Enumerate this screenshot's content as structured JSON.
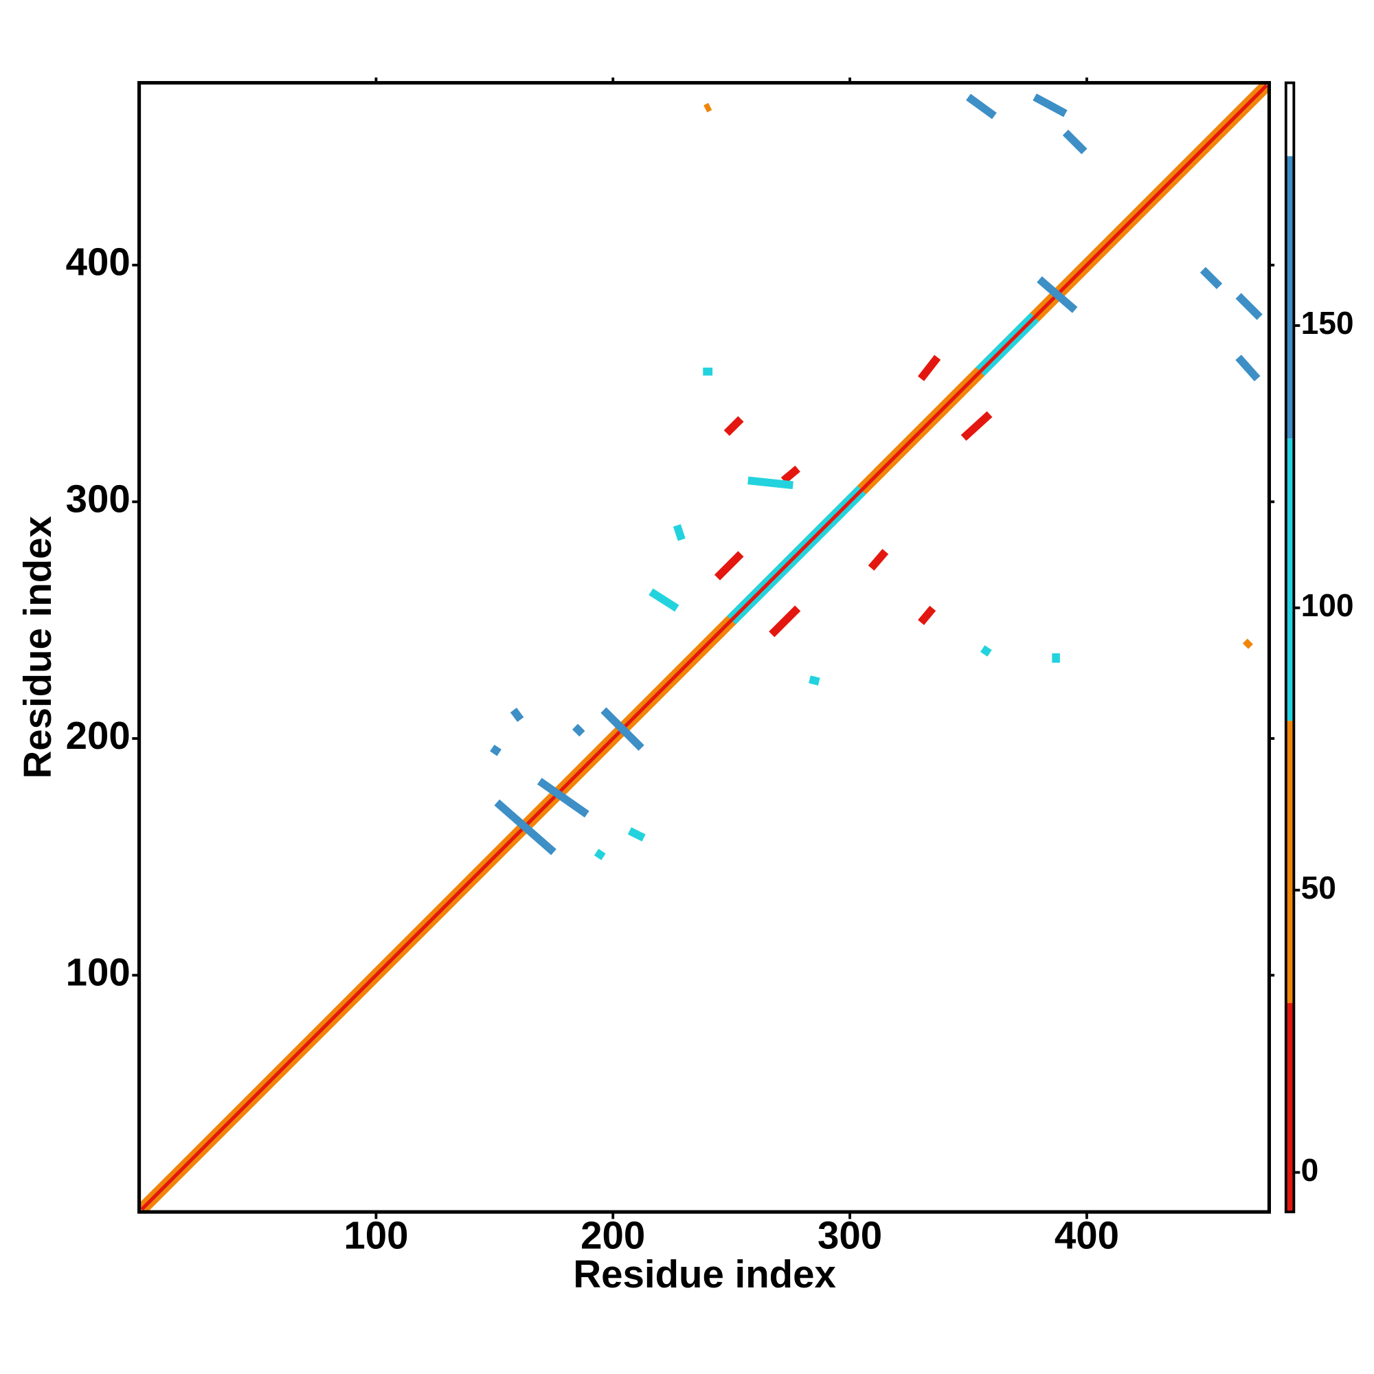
{
  "chart_data": {
    "type": "contact_map",
    "xlabel": "Residue index",
    "ylabel": "Residue index",
    "xlim": [
      0,
      477
    ],
    "ylim": [
      0,
      477
    ],
    "xticks": [
      100,
      200,
      300,
      400
    ],
    "yticks": [
      100,
      200,
      300,
      400
    ],
    "colorbar": {
      "lim": [
        -7,
        193
      ],
      "ticks": [
        0,
        50,
        100,
        150
      ],
      "bands": [
        {
          "to": 30,
          "color": "#e3170f"
        },
        {
          "to": 80,
          "color": "#f0850a"
        },
        {
          "to": 130,
          "color": "#22d3de"
        },
        {
          "to": 180,
          "color": "#3d8fc6"
        }
      ]
    },
    "segments": [
      {
        "x": [
          1,
          476
        ],
        "y": [
          1,
          476
        ],
        "value": 60
      },
      {
        "x": [
          250,
          305
        ],
        "y": [
          250,
          305
        ],
        "value": 110
      },
      {
        "x": [
          355,
          378
        ],
        "y": [
          355,
          378
        ],
        "value": 110
      },
      {
        "x": [
          1,
          476
        ],
        "y": [
          1,
          476
        ],
        "value": 10
      },
      {
        "x": [
          350,
          361
        ],
        "y": [
          471,
          463
        ],
        "value": 150
      },
      {
        "x": [
          378,
          391
        ],
        "y": [
          471,
          464
        ],
        "value": 150
      },
      {
        "x": [
          391,
          399
        ],
        "y": [
          456,
          448
        ],
        "value": 150
      },
      {
        "x": [
          449,
          456
        ],
        "y": [
          398,
          391
        ],
        "value": 150
      },
      {
        "x": [
          464,
          473
        ],
        "y": [
          387,
          378
        ],
        "value": 150
      },
      {
        "x": [
          464,
          472
        ],
        "y": [
          361,
          352
        ],
        "value": 150
      },
      {
        "x": [
          380,
          395
        ],
        "y": [
          394,
          381
        ],
        "value": 155
      },
      {
        "x": [
          151,
          175
        ],
        "y": [
          173,
          152
        ],
        "value": 150
      },
      {
        "x": [
          169,
          189
        ],
        "y": [
          182,
          168
        ],
        "value": 150
      },
      {
        "x": [
          196,
          212
        ],
        "y": [
          212,
          196
        ],
        "value": 150
      },
      {
        "x": [
          158,
          161
        ],
        "y": [
          212,
          208
        ],
        "value": 140
      },
      {
        "x": [
          149,
          152
        ],
        "y": [
          196,
          194
        ],
        "value": 135
      },
      {
        "x": [
          184,
          187
        ],
        "y": [
          205,
          202
        ],
        "value": 140
      },
      {
        "x": [
          207,
          213
        ],
        "y": [
          161,
          158
        ],
        "value": 125
      },
      {
        "x": [
          193,
          196
        ],
        "y": [
          152,
          150
        ],
        "value": 125
      },
      {
        "x": [
          248,
          254
        ],
        "y": [
          329,
          335
        ],
        "value": 10
      },
      {
        "x": [
          272,
          278
        ],
        "y": [
          309,
          314
        ],
        "value": 10
      },
      {
        "x": [
          244,
          254
        ],
        "y": [
          268,
          278
        ],
        "value": 10
      },
      {
        "x": [
          267,
          278
        ],
        "y": [
          244,
          255
        ],
        "value": 10
      },
      {
        "x": [
          309,
          315
        ],
        "y": [
          272,
          279
        ],
        "value": 10
      },
      {
        "x": [
          330,
          335
        ],
        "y": [
          249,
          255
        ],
        "value": 10
      },
      {
        "x": [
          330,
          337
        ],
        "y": [
          352,
          361
        ],
        "value": 10
      },
      {
        "x": [
          348,
          359
        ],
        "y": [
          327,
          337
        ],
        "value": 10
      },
      {
        "x": [
          216,
          227
        ],
        "y": [
          262,
          255
        ],
        "value": 110
      },
      {
        "x": [
          257,
          276
        ],
        "y": [
          309,
          307
        ],
        "value": 110
      },
      {
        "x": [
          238,
          242
        ],
        "y": [
          355,
          355
        ],
        "value": 110
      },
      {
        "x": [
          283,
          287
        ],
        "y": [
          225,
          224
        ],
        "value": 110
      },
      {
        "x": [
          356,
          359
        ],
        "y": [
          238,
          236
        ],
        "value": 110
      },
      {
        "x": [
          387,
          387
        ],
        "y": [
          236,
          232
        ],
        "value": 110
      },
      {
        "x": [
          227,
          229
        ],
        "y": [
          290,
          284
        ],
        "value": 110
      },
      {
        "x": [
          239,
          241
        ],
        "y": [
          466,
          467
        ],
        "value": 60
      },
      {
        "x": [
          467,
          469
        ],
        "y": [
          239,
          241
        ],
        "value": 60
      }
    ]
  }
}
